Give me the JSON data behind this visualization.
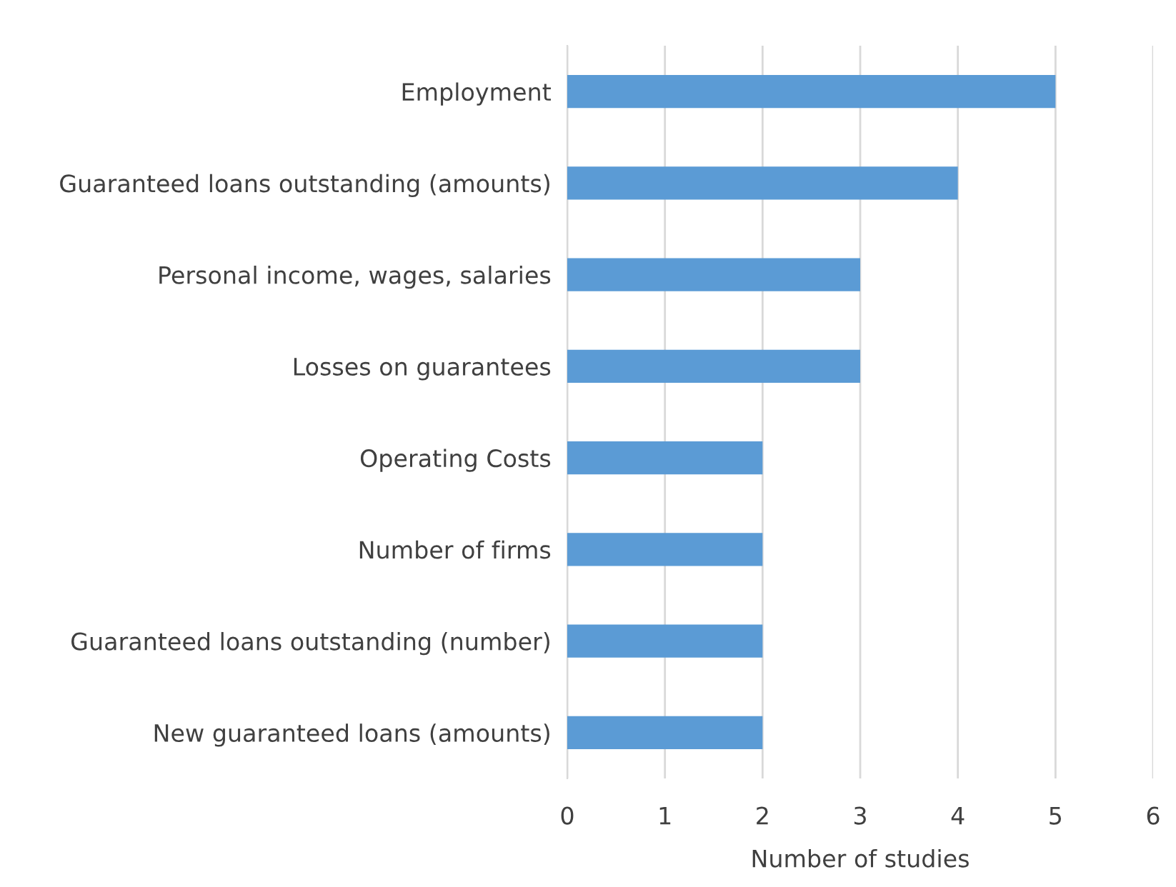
{
  "chart_data": {
    "type": "bar",
    "orientation": "horizontal",
    "categories": [
      "Employment",
      "Guaranteed loans outstanding (amounts)",
      "Personal income, wages, salaries",
      "Losses on guarantees",
      "Operating Costs",
      "Number of firms",
      "Guaranteed loans outstanding (number)",
      "New guaranteed loans (amounts)"
    ],
    "values": [
      5,
      4,
      3,
      3,
      2,
      2,
      2,
      2
    ],
    "color": "#5b9bd5",
    "xlabel": "Number of studies",
    "xlim": [
      0,
      6
    ],
    "xticks": [
      0,
      1,
      2,
      3,
      4,
      5,
      6
    ],
    "grid": "x",
    "legend": false
  }
}
